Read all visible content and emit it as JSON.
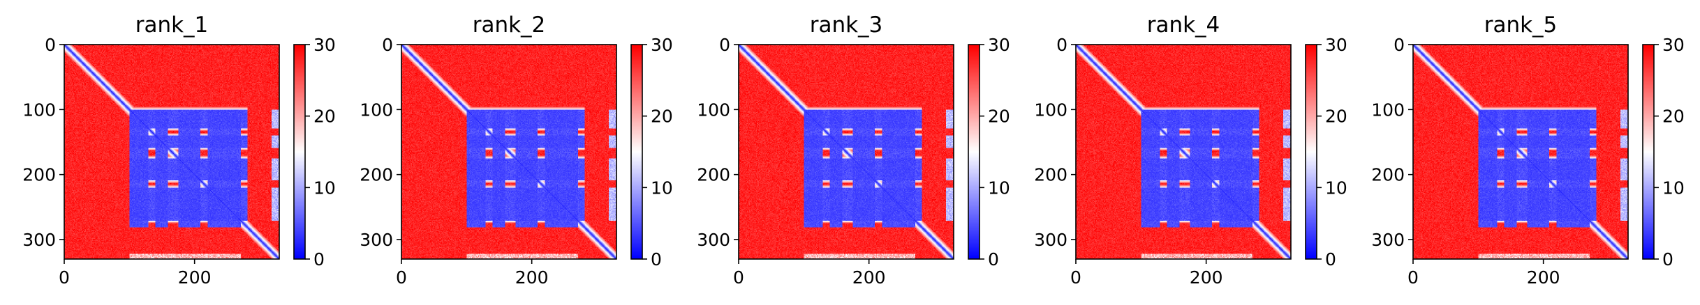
{
  "chart_data": [
    {
      "type": "heatmap",
      "title": "rank_1",
      "xlabel": "",
      "ylabel": "",
      "n": 330,
      "xlim": [
        0,
        330
      ],
      "ylim": [
        330,
        0
      ],
      "x_ticks": [
        "0",
        "200"
      ],
      "y_ticks": [
        "0",
        "100",
        "200",
        "300"
      ],
      "colorbar": {
        "ticks": [
          "0",
          "10",
          "20",
          "30"
        ],
        "range": [
          0,
          30
        ],
        "cmap": "bwr"
      },
      "description_blocks": {
        "low_regions": [
          [
            100,
            128
          ],
          [
            140,
            158
          ],
          [
            175,
            208
          ],
          [
            220,
            270
          ]
        ],
        "low_cols_extent": [
          100,
          280
        ]
      }
    },
    {
      "type": "heatmap",
      "title": "rank_2",
      "xlabel": "",
      "ylabel": "",
      "n": 330,
      "xlim": [
        0,
        330
      ],
      "ylim": [
        330,
        0
      ],
      "x_ticks": [
        "0",
        "200"
      ],
      "y_ticks": [
        "0",
        "100",
        "200",
        "300"
      ],
      "colorbar": {
        "ticks": [
          "0",
          "10",
          "20",
          "30"
        ],
        "range": [
          0,
          30
        ],
        "cmap": "bwr"
      },
      "description_blocks": {
        "low_regions": [
          [
            100,
            128
          ],
          [
            140,
            158
          ],
          [
            175,
            208
          ],
          [
            220,
            270
          ]
        ],
        "low_cols_extent": [
          100,
          280
        ]
      }
    },
    {
      "type": "heatmap",
      "title": "rank_3",
      "xlabel": "",
      "ylabel": "",
      "n": 330,
      "xlim": [
        0,
        330
      ],
      "ylim": [
        330,
        0
      ],
      "x_ticks": [
        "0",
        "200"
      ],
      "y_ticks": [
        "0",
        "100",
        "200",
        "300"
      ],
      "colorbar": {
        "ticks": [
          "0",
          "10",
          "20",
          "30"
        ],
        "range": [
          0,
          30
        ],
        "cmap": "bwr"
      },
      "description_blocks": {
        "low_regions": [
          [
            100,
            128
          ],
          [
            140,
            158
          ],
          [
            175,
            208
          ],
          [
            220,
            270
          ]
        ],
        "low_cols_extent": [
          100,
          280
        ]
      }
    },
    {
      "type": "heatmap",
      "title": "rank_4",
      "xlabel": "",
      "ylabel": "",
      "n": 330,
      "xlim": [
        0,
        330
      ],
      "ylim": [
        330,
        0
      ],
      "x_ticks": [
        "0",
        "200"
      ],
      "y_ticks": [
        "0",
        "100",
        "200",
        "300"
      ],
      "colorbar": {
        "ticks": [
          "0",
          "10",
          "20",
          "30"
        ],
        "range": [
          0,
          30
        ],
        "cmap": "bwr"
      },
      "description_blocks": {
        "low_regions": [
          [
            100,
            128
          ],
          [
            140,
            158
          ],
          [
            175,
            208
          ],
          [
            220,
            270
          ]
        ],
        "low_cols_extent": [
          100,
          280
        ]
      }
    },
    {
      "type": "heatmap",
      "title": "rank_5",
      "xlabel": "",
      "ylabel": "",
      "n": 330,
      "xlim": [
        0,
        330
      ],
      "ylim": [
        330,
        0
      ],
      "x_ticks": [
        "0",
        "200"
      ],
      "y_ticks": [
        "0",
        "100",
        "200",
        "300"
      ],
      "colorbar": {
        "ticks": [
          "0",
          "10",
          "20",
          "30"
        ],
        "range": [
          0,
          30
        ],
        "cmap": "bwr"
      },
      "description_blocks": {
        "low_regions": [
          [
            100,
            128
          ],
          [
            140,
            158
          ],
          [
            175,
            208
          ],
          [
            220,
            270
          ]
        ],
        "low_cols_extent": [
          100,
          280
        ]
      }
    }
  ],
  "colors": {
    "high": "#ff0000",
    "mid": "#ffffff",
    "low": "#0000ff",
    "axis": "#000000"
  }
}
